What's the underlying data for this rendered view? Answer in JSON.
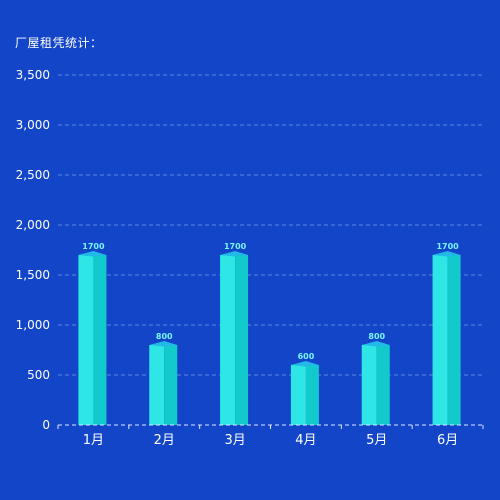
{
  "chart_data": {
    "type": "bar",
    "title": "厂屋租凭统计：",
    "categories": [
      "1月",
      "2月",
      "3月",
      "4月",
      "5月",
      "6月"
    ],
    "values": [
      1700,
      800,
      1700,
      600,
      800,
      1700
    ],
    "ylim": [
      0,
      3500
    ],
    "yticks": [
      "0",
      "500",
      "1,000",
      "1,500",
      "2,000",
      "2,500",
      "3,000",
      "3,500"
    ],
    "grid": true,
    "colors": {
      "background": "#1245c8",
      "bar_front": "#2ee6e6",
      "bar_side": "#12c9cc",
      "bar_top": "#22b8e8",
      "label": "#7af4ff",
      "grid": "#5f86e0",
      "axis": "#dfe8ff"
    }
  }
}
